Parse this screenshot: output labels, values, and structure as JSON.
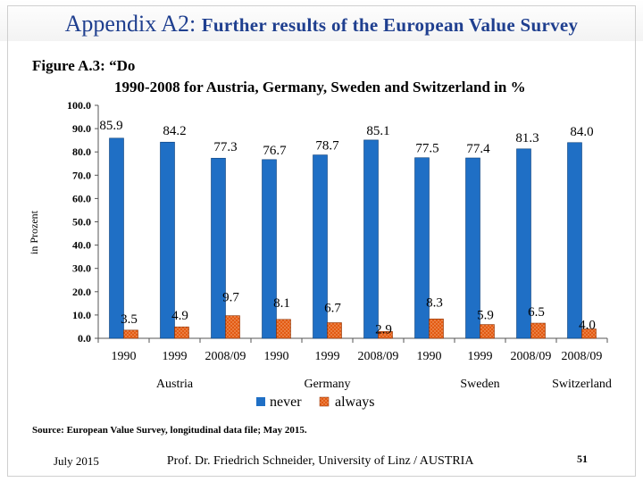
{
  "header": {
    "title_main": "Appendix A2: ",
    "title_sub": "Further results of the European Value Survey"
  },
  "figure": {
    "title": "Figure A.3: “Do",
    "subtitle": "1990-2008 for Austria, Germany, Sweden and Switzerland in %"
  },
  "chart_data": {
    "type": "bar",
    "ylabel": "in Prozent",
    "ylim": [
      0,
      100
    ],
    "yticks": [
      "0.0",
      "10.0",
      "20.0",
      "30.0",
      "40.0",
      "50.0",
      "60.0",
      "70.0",
      "80.0",
      "90.0",
      "100.0"
    ],
    "categories": [
      "1990",
      "1999",
      "2008/09",
      "1990",
      "1999",
      "2008/09",
      "1990",
      "1999",
      "2008/09",
      "2008/09"
    ],
    "groups": [
      {
        "label": "Austria",
        "start": 0,
        "count": 3
      },
      {
        "label": "Germany",
        "start": 3,
        "count": 3
      },
      {
        "label": "Sweden",
        "start": 6,
        "count": 3
      },
      {
        "label": "Switzerland",
        "start": 9,
        "count": 1
      }
    ],
    "series": [
      {
        "name": "never",
        "color": "#1f6fc5",
        "values": [
          85.9,
          84.2,
          77.3,
          76.7,
          78.7,
          85.1,
          77.5,
          77.4,
          81.3,
          84.0
        ],
        "labels": [
          "85.9",
          "84.2",
          "77.3",
          "76.7",
          "78.7",
          "85.1",
          "77.5",
          "77.4",
          "81.3",
          "84.0"
        ]
      },
      {
        "name": "always",
        "color": "#e35a12",
        "values": [
          3.5,
          4.9,
          9.7,
          8.1,
          6.7,
          2.9,
          8.3,
          5.9,
          6.5,
          4.0
        ],
        "labels": [
          "3.5",
          "4.9",
          "9.7",
          "8.1",
          "6.7",
          "2.9",
          "8.3",
          "5.9",
          "6.5",
          "4.0"
        ]
      }
    ]
  },
  "source": "Source: European Value Survey, longitudinal data file; May 2015.",
  "footer": {
    "date": "July 2015",
    "author": "Prof. Dr. Friedrich Schneider, University of Linz / AUSTRIA",
    "page": "51"
  }
}
